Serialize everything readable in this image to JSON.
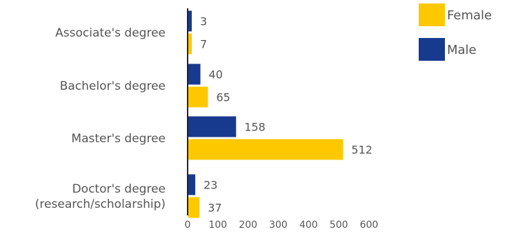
{
  "chart_data": {
    "type": "bar",
    "orientation": "horizontal",
    "categories": [
      "Associate's degree",
      "Bachelor's degree",
      "Master's degree",
      "Doctor's degree\n(research/scholarship)"
    ],
    "series": [
      {
        "name": "Male",
        "values": [
          3,
          40,
          158,
          23
        ],
        "color": "#173a8e"
      },
      {
        "name": "Female",
        "values": [
          7,
          65,
          512,
          37
        ],
        "color": "#fec800"
      }
    ],
    "xlim": [
      0,
      600
    ],
    "xticks": [
      0,
      100,
      200,
      300,
      400,
      500,
      600
    ],
    "title": "",
    "xlabel": "",
    "ylabel": "",
    "grid": false,
    "legend": {
      "placement": "top-right",
      "entries": [
        {
          "label": "Female",
          "color": "#fec800"
        },
        {
          "label": "Male",
          "color": "#173a8e"
        }
      ]
    }
  }
}
